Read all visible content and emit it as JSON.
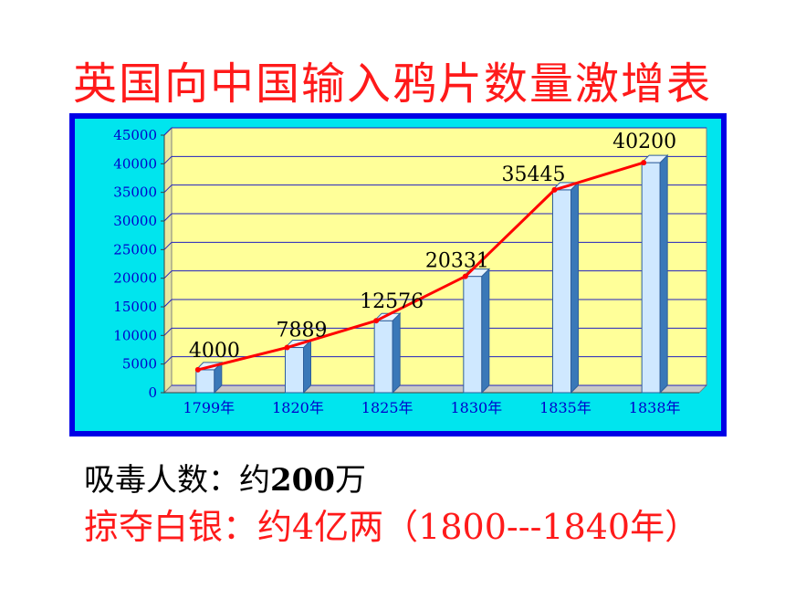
{
  "title": "英国向中国输入鸦片数量激增表",
  "colors": {
    "title": "#ff1a1a",
    "frame": "#0000e6",
    "frame_inner": "#00e5ee",
    "plot_bg": "#ffff99",
    "bar_face": "#cfe8ff",
    "bar_side": "#3a78b8",
    "trend": "#ff0000",
    "axis_text": "#0000cc",
    "value_text": "#000000",
    "note_red": "#ff1a1a"
  },
  "chart_data": {
    "type": "bar",
    "categories": [
      "1799年",
      "1820年",
      "1825年",
      "1830年",
      "1835年",
      "1838年"
    ],
    "values": [
      4000,
      7889,
      12576,
      20331,
      35445,
      40200
    ],
    "data_labels": [
      "4000",
      "7889",
      "12576",
      "20331",
      "35445",
      "40200"
    ],
    "title": "英国向中国输入鸦片数量激增表",
    "ylim": [
      0,
      45000
    ],
    "yticks": [
      0,
      5000,
      10000,
      15000,
      20000,
      25000,
      30000,
      35000,
      40000,
      45000
    ],
    "grid": true,
    "trend_line": true,
    "style": "3d-bar"
  },
  "notes": {
    "addicts_label": "吸毒人数：约",
    "addicts_value": "200",
    "addicts_unit": "万",
    "silver_text": "掠夺白银：约4亿两（1800---1840年）"
  }
}
